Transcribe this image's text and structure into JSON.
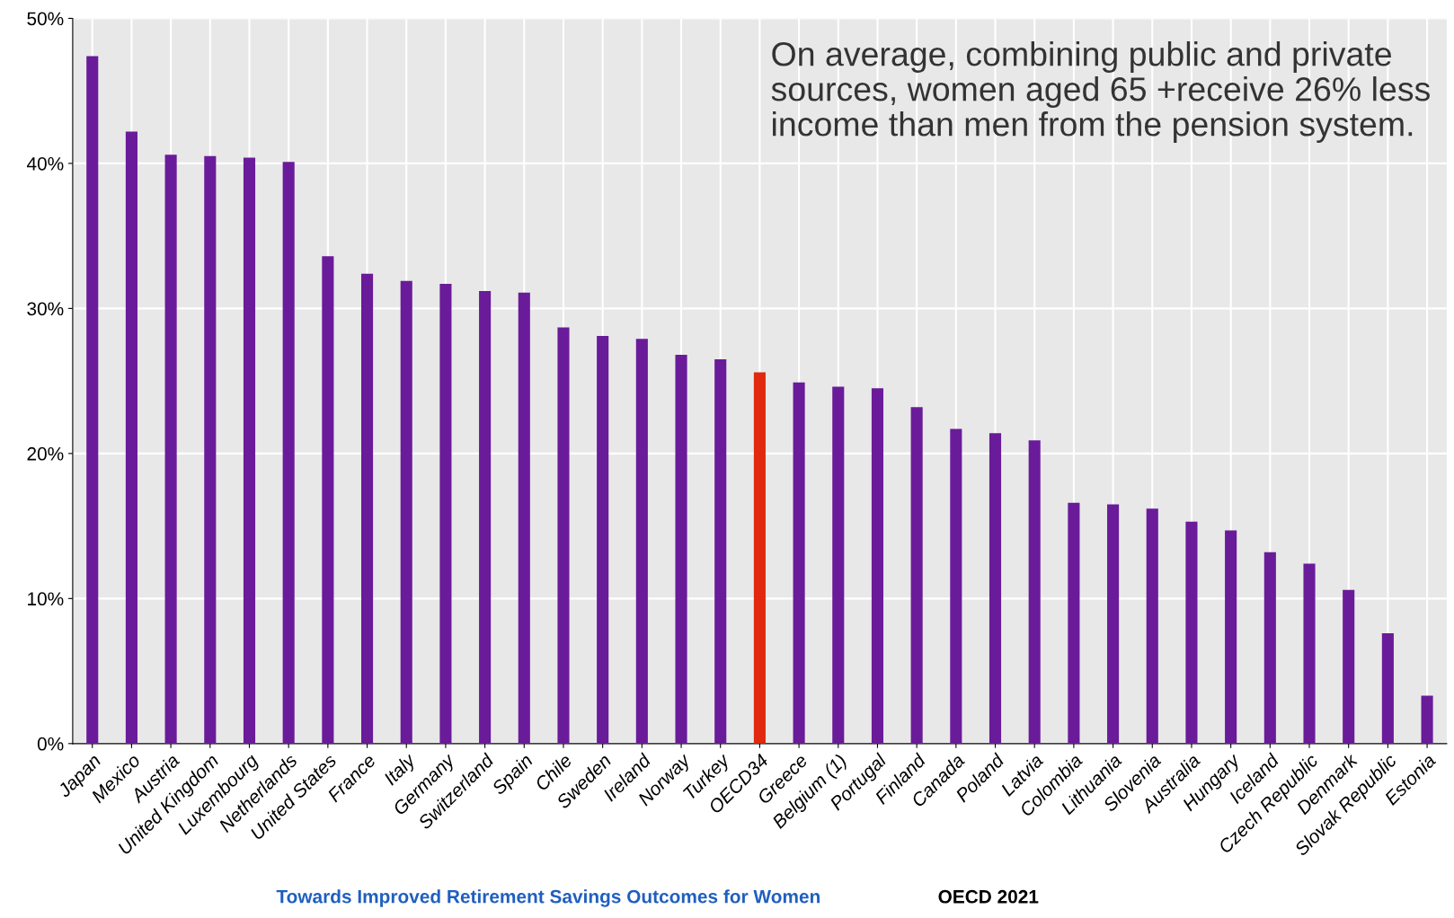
{
  "chart_data": {
    "type": "bar",
    "categories": [
      "Japan",
      "Mexico",
      "Austria",
      "United Kingdom",
      "Luxembourg",
      "Netherlands",
      "United States",
      "France",
      "Italy",
      "Germany",
      "Switzerland",
      "Spain",
      "Chile",
      "Sweden",
      "Ireland",
      "Norway",
      "Turkey",
      "OECD34",
      "Greece",
      "Belgium (1)",
      "Portugal",
      "Finland",
      "Canada",
      "Poland",
      "Latvia",
      "Colombia",
      "Lithuania",
      "Slovenia",
      "Australia",
      "Hungary",
      "Iceland",
      "Czech Republic",
      "Denmark",
      "Slovak Republic",
      "Estonia"
    ],
    "values": [
      47.4,
      42.2,
      40.6,
      40.5,
      40.4,
      40.1,
      33.6,
      32.4,
      31.9,
      31.7,
      31.2,
      31.1,
      28.7,
      28.1,
      27.9,
      26.8,
      26.5,
      25.6,
      24.9,
      24.6,
      24.5,
      23.2,
      21.7,
      21.4,
      20.9,
      16.6,
      16.5,
      16.2,
      15.3,
      14.7,
      13.2,
      12.4,
      10.6,
      7.6,
      3.3
    ],
    "colors": [
      "#6a1b9a",
      "#6a1b9a",
      "#6a1b9a",
      "#6a1b9a",
      "#6a1b9a",
      "#6a1b9a",
      "#6a1b9a",
      "#6a1b9a",
      "#6a1b9a",
      "#6a1b9a",
      "#6a1b9a",
      "#6a1b9a",
      "#6a1b9a",
      "#6a1b9a",
      "#6a1b9a",
      "#6a1b9a",
      "#6a1b9a",
      "#e0290e",
      "#6a1b9a",
      "#6a1b9a",
      "#6a1b9a",
      "#6a1b9a",
      "#6a1b9a",
      "#6a1b9a",
      "#6a1b9a",
      "#6a1b9a",
      "#6a1b9a",
      "#6a1b9a",
      "#6a1b9a",
      "#6a1b9a",
      "#6a1b9a",
      "#6a1b9a",
      "#6a1b9a",
      "#6a1b9a",
      "#6a1b9a"
    ],
    "ylim": [
      0,
      50
    ],
    "yticks": [
      {
        "value": 0,
        "label": "0%"
      },
      {
        "value": 10,
        "label": "10%"
      },
      {
        "value": 20,
        "label": "20%"
      },
      {
        "value": 30,
        "label": "30%"
      },
      {
        "value": 40,
        "label": "40%"
      },
      {
        "value": 50,
        "label": "50%"
      }
    ],
    "grid": true,
    "annotations": [
      "On average, combining public and private sources, women aged 65 +receive 26% less income than men from the pension system.",
      "Towards Improved Retirement Savings Outcomes for Women",
      "OECD 2021"
    ]
  }
}
